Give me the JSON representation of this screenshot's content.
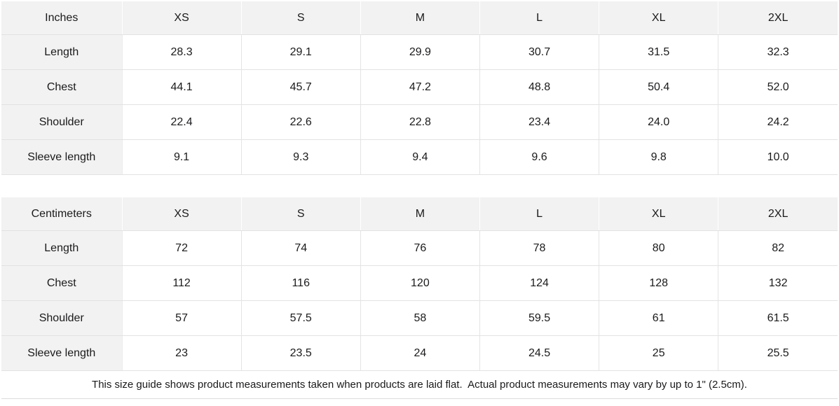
{
  "colors": {
    "header_cell_bg": "#f2f2f2",
    "grid_line": "#e2e2e2",
    "text": "#1a1a1c",
    "header_divider": "#ffffff"
  },
  "size_chart": {
    "tables": [
      {
        "unit_label": "Inches",
        "columns": [
          "XS",
          "S",
          "M",
          "L",
          "XL",
          "2XL"
        ],
        "rows": [
          {
            "label": "Length",
            "values": [
              "28.3",
              "29.1",
              "29.9",
              "30.7",
              "31.5",
              "32.3"
            ]
          },
          {
            "label": "Chest",
            "values": [
              "44.1",
              "45.7",
              "47.2",
              "48.8",
              "50.4",
              "52.0"
            ]
          },
          {
            "label": "Shoulder",
            "values": [
              "22.4",
              "22.6",
              "22.8",
              "23.4",
              "24.0",
              "24.2"
            ]
          },
          {
            "label": "Sleeve length",
            "values": [
              "9.1",
              "9.3",
              "9.4",
              "9.6",
              "9.8",
              "10.0"
            ]
          }
        ]
      },
      {
        "unit_label": "Centimeters",
        "columns": [
          "XS",
          "S",
          "M",
          "L",
          "XL",
          "2XL"
        ],
        "rows": [
          {
            "label": "Length",
            "values": [
              "72",
              "74",
              "76",
              "78",
              "80",
              "82"
            ]
          },
          {
            "label": "Chest",
            "values": [
              "112",
              "116",
              "120",
              "124",
              "128",
              "132"
            ]
          },
          {
            "label": "Shoulder",
            "values": [
              "57",
              "57.5",
              "58",
              "59.5",
              "61",
              "61.5"
            ]
          },
          {
            "label": "Sleeve length",
            "values": [
              "23",
              "23.5",
              "24",
              "24.5",
              "25",
              "25.5"
            ]
          }
        ]
      }
    ]
  },
  "footer": {
    "note": "This size guide shows product measurements taken when products are laid flat.  Actual product measurements may vary by up to 1\" (2.5cm)."
  }
}
